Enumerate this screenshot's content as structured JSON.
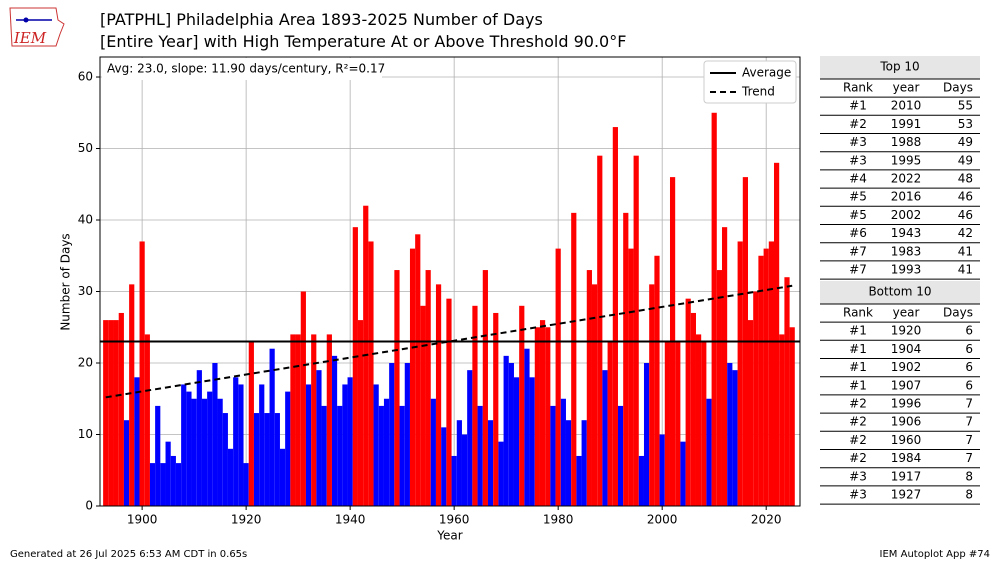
{
  "chart_data": {
    "type": "bar",
    "title": "[PATPHL] Philadelphia Area 1893-2025 Number of Days",
    "subtitle": "[Entire Year] with High Temperature At or Above Threshold 90.0°F",
    "annotation": "Avg: 23.0, slope: 11.90 days/century, R²=0.17",
    "xlabel": "Year",
    "ylabel": "Number of Days",
    "x": [
      1893,
      1894,
      1895,
      1896,
      1897,
      1898,
      1899,
      1900,
      1901,
      1902,
      1903,
      1904,
      1905,
      1906,
      1907,
      1908,
      1909,
      1910,
      1911,
      1912,
      1913,
      1914,
      1915,
      1916,
      1917,
      1918,
      1919,
      1920,
      1921,
      1922,
      1923,
      1924,
      1925,
      1926,
      1927,
      1928,
      1929,
      1930,
      1931,
      1932,
      1933,
      1934,
      1935,
      1936,
      1937,
      1938,
      1939,
      1940,
      1941,
      1942,
      1943,
      1944,
      1945,
      1946,
      1947,
      1948,
      1949,
      1950,
      1951,
      1952,
      1953,
      1954,
      1955,
      1956,
      1957,
      1958,
      1959,
      1960,
      1961,
      1962,
      1963,
      1964,
      1965,
      1966,
      1967,
      1968,
      1969,
      1970,
      1971,
      1972,
      1973,
      1974,
      1975,
      1976,
      1977,
      1978,
      1979,
      1980,
      1981,
      1982,
      1983,
      1984,
      1985,
      1986,
      1987,
      1988,
      1989,
      1990,
      1991,
      1992,
      1993,
      1994,
      1995,
      1996,
      1997,
      1998,
      1999,
      2000,
      2001,
      2002,
      2003,
      2004,
      2005,
      2006,
      2007,
      2008,
      2009,
      2010,
      2011,
      2012,
      2013,
      2014,
      2015,
      2016,
      2017,
      2018,
      2019,
      2020,
      2021,
      2022,
      2023,
      2024,
      2025
    ],
    "values": [
      26,
      26,
      26,
      27,
      12,
      31,
      18,
      37,
      24,
      6,
      14,
      6,
      9,
      7,
      6,
      17,
      16,
      15,
      19,
      15,
      16,
      20,
      15,
      13,
      8,
      18,
      17,
      6,
      23,
      13,
      17,
      13,
      22,
      13,
      8,
      16,
      24,
      24,
      30,
      17,
      24,
      19,
      14,
      24,
      21,
      14,
      17,
      18,
      39,
      26,
      42,
      37,
      17,
      14,
      15,
      20,
      33,
      14,
      20,
      36,
      38,
      28,
      33,
      15,
      31,
      11,
      29,
      7,
      12,
      10,
      19,
      28,
      14,
      33,
      12,
      27,
      9,
      21,
      20,
      18,
      28,
      22,
      18,
      25,
      26,
      25,
      14,
      36,
      15,
      12,
      41,
      7,
      12,
      33,
      31,
      49,
      19,
      23,
      53,
      14,
      41,
      36,
      49,
      7,
      20,
      31,
      35,
      10,
      23,
      46,
      23,
      9,
      29,
      27,
      24,
      23,
      15,
      55,
      33,
      39,
      20,
      19,
      37,
      46,
      26,
      30,
      35,
      36,
      37,
      48,
      24,
      32,
      25
    ],
    "above_color": "#ff0000",
    "below_color": "#0000ff",
    "average": 23.0,
    "lines": [
      {
        "name": "Average",
        "color": "#000000",
        "dash": false
      },
      {
        "name": "Trend",
        "color": "#000000",
        "dash": true,
        "x": [
          1893,
          2025
        ],
        "values": [
          15.2,
          30.8
        ]
      }
    ],
    "xlim": [
      1891.9,
      2026.5
    ],
    "ylim": [
      0,
      62.8
    ],
    "xticks": [
      1900,
      1920,
      1940,
      1960,
      1980,
      2000,
      2020
    ],
    "yticks": [
      0,
      10,
      20,
      30,
      40,
      50,
      60
    ],
    "grid": true,
    "legend": "upper right"
  },
  "top_table": {
    "title": "Top 10",
    "columns": [
      "Rank",
      "year",
      "Days"
    ],
    "rows": [
      [
        "#1",
        "2010",
        "55"
      ],
      [
        "#2",
        "1991",
        "53"
      ],
      [
        "#3",
        "1988",
        "49"
      ],
      [
        "#3",
        "1995",
        "49"
      ],
      [
        "#4",
        "2022",
        "48"
      ],
      [
        "#5",
        "2016",
        "46"
      ],
      [
        "#5",
        "2002",
        "46"
      ],
      [
        "#6",
        "1943",
        "42"
      ],
      [
        "#7",
        "1983",
        "41"
      ],
      [
        "#7",
        "1993",
        "41"
      ]
    ]
  },
  "bottom_table": {
    "title": "Bottom 10",
    "columns": [
      "Rank",
      "year",
      "Days"
    ],
    "rows": [
      [
        "#1",
        "1920",
        "6"
      ],
      [
        "#1",
        "1904",
        "6"
      ],
      [
        "#1",
        "1902",
        "6"
      ],
      [
        "#1",
        "1907",
        "6"
      ],
      [
        "#2",
        "1996",
        "7"
      ],
      [
        "#2",
        "1906",
        "7"
      ],
      [
        "#2",
        "1960",
        "7"
      ],
      [
        "#2",
        "1984",
        "7"
      ],
      [
        "#3",
        "1917",
        "8"
      ],
      [
        "#3",
        "1927",
        "8"
      ]
    ]
  },
  "logo": "IEM",
  "footer_left": "Generated at 26 Jul 2025 6:53 AM CDT in 0.65s",
  "footer_right": "IEM Autoplot App #74"
}
